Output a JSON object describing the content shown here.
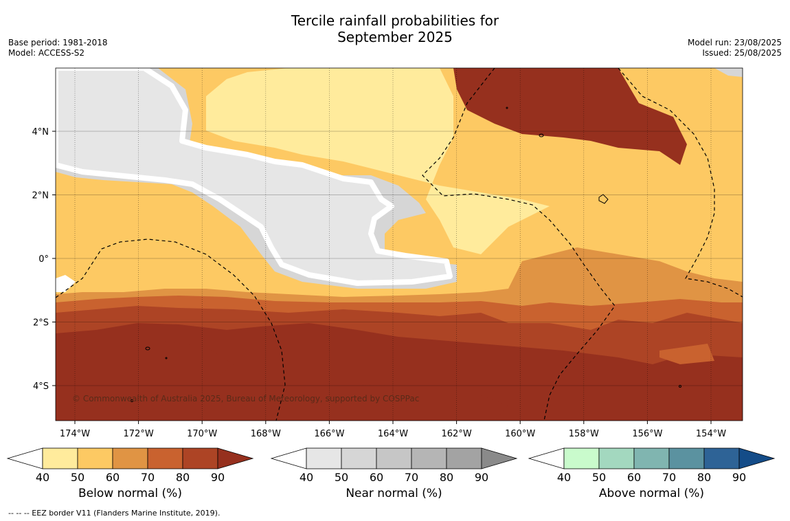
{
  "header": {
    "title_line1": "Tercile rainfall probabilities for",
    "title_line2": "September 2025",
    "base_period": "Base period: 1981-2018",
    "model": "Model: ACCESS-S2",
    "model_run": "Model run: 23/08/2025",
    "issued": "Issued: 25/08/2025"
  },
  "map": {
    "lon_ticks": [
      "174°W",
      "172°W",
      "170°W",
      "168°W",
      "166°W",
      "164°W",
      "162°W",
      "160°W",
      "158°W",
      "156°W",
      "154°W"
    ],
    "lat_ticks": [
      "4°N",
      "2°N",
      "0°",
      "2°S",
      "4°S"
    ],
    "copyright": "© Commonwealth of Australia 2025, Bureau of Meteorology, supported by COSPPac",
    "colors": {
      "below": [
        "#ffeb9c",
        "#fdc963",
        "#e09444",
        "#c9622f",
        "#ad4425",
        "#96301e"
      ],
      "near": [
        "#e6e6e6",
        "#d6d6d6",
        "#c6c6c6",
        "#b5b5b5",
        "#a3a3a3",
        "#8a8a8a"
      ],
      "above": [
        "#c9fbcc",
        "#a3d8bf",
        "#80b5b0",
        "#5b92a0",
        "#2e6396",
        "#144c88"
      ]
    }
  },
  "colorbars": {
    "below_label": "Below normal (%)",
    "near_label": "Near normal (%)",
    "above_label": "Above normal (%)",
    "ticks": [
      "40",
      "50",
      "60",
      "70",
      "80",
      "90"
    ]
  },
  "footnote": "--  --  -- EEZ border V11 (Flanders Marine Institute, 2019)."
}
